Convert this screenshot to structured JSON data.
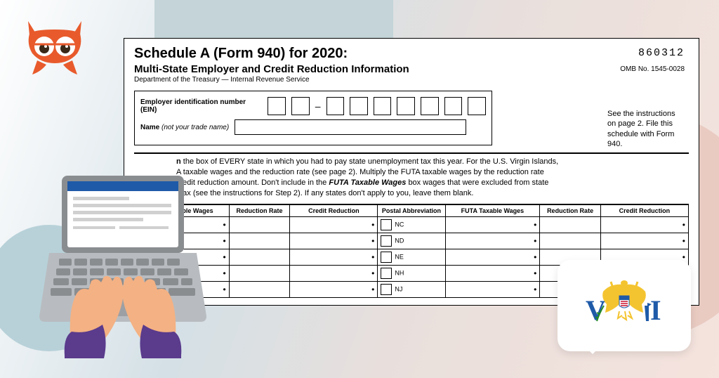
{
  "form": {
    "title": "Schedule A (Form 940) for 2020:",
    "subtitle": "Multi-State Employer and Credit Reduction Information",
    "department": "Department of the Treasury — Internal Revenue Service",
    "formNumber": "860312",
    "ombNumber": "OMB No. 1545-0028",
    "sideInstructions": "See the instructions on page 2. File this schedule with Form 940.",
    "einLabel": "Employer identification number (EIN)",
    "nameLabel": "Name",
    "nameHint": "(not your trade name)",
    "mainInstructions1": "the box of EVERY state in which you had to pay state unemployment tax this year. For the U.S. Virgin Islands,",
    "mainInstructions2": "A taxable wages and the reduction rate (see page 2). Multiply the FUTA taxable wages by the reduction rate",
    "mainInstructions3": "credit reduction amount. Don't include in the",
    "mainInstructions3b": "FUTA Taxable Wages",
    "mainInstructions3c": "box wages that were excluded from state",
    "mainInstructions4": "t tax (see the instructions for Step 2). If any states don't apply to you, leave them blank."
  },
  "table": {
    "headers": {
      "futaWages": "FUTA Taxable Wages",
      "reductionRate": "Reduction Rate",
      "creditReduction": "Credit Reduction",
      "postal": "Postal Abbreviation"
    },
    "states": [
      "NC",
      "ND",
      "NE",
      "NH",
      "NJ"
    ]
  },
  "colors": {
    "logoOrange": "#e85a2c",
    "laptopGray": "#b8bcc0",
    "laptopDark": "#7a7d80",
    "handsSkin": "#f4b183",
    "handsSleeve": "#5a3b8c",
    "flagYellow": "#f4c430",
    "flagBlue": "#1e5aa8",
    "flagRed": "#c8102e",
    "flagGreen": "#228b22"
  }
}
